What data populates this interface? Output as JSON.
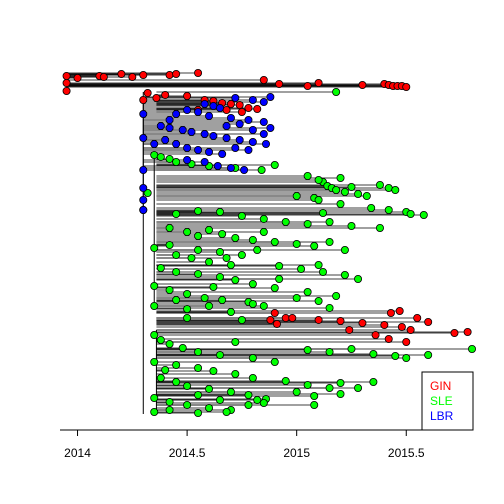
{
  "chart_data": {
    "type": "scatter",
    "subtype": "time-scaled phylogenetic tree",
    "title": "",
    "xlabel": "",
    "ylabel": "",
    "xlim": [
      2013.92,
      2015.8
    ],
    "x_ticks": [
      2014,
      2014.5,
      2015,
      2015.5
    ],
    "x_tick_labels": [
      "2014",
      "2014.5",
      "2015",
      "2015.5"
    ],
    "grid": false,
    "legend_position": "bottom-right",
    "series": [
      {
        "name": "GIN",
        "color": "#ff0000",
        "points": [
          [
            2013.95,
            76
          ],
          [
            2013.95,
            83
          ],
          [
            2013.95,
            91
          ],
          [
            2014.0,
            78
          ],
          [
            2014.1,
            76
          ],
          [
            2014.12,
            77
          ],
          [
            2014.2,
            74
          ],
          [
            2014.25,
            77
          ],
          [
            2014.3,
            75
          ],
          [
            2014.42,
            75
          ],
          [
            2014.45,
            74
          ],
          [
            2014.55,
            73
          ],
          [
            2014.85,
            80
          ],
          [
            2014.92,
            84
          ],
          [
            2015.05,
            86
          ],
          [
            2015.1,
            83
          ],
          [
            2015.3,
            85
          ],
          [
            2015.4,
            84
          ],
          [
            2015.42,
            85
          ],
          [
            2015.44,
            86
          ],
          [
            2015.46,
            86
          ],
          [
            2015.48,
            86
          ],
          [
            2015.5,
            87
          ],
          [
            2014.32,
            93
          ],
          [
            2014.4,
            95
          ],
          [
            2014.5,
            96
          ],
          [
            2014.58,
            100
          ],
          [
            2014.62,
            101
          ],
          [
            2014.66,
            103
          ],
          [
            2014.7,
            104
          ],
          [
            2014.74,
            105
          ],
          [
            2014.78,
            108
          ],
          [
            2014.82,
            109
          ],
          [
            2014.68,
            110
          ],
          [
            2014.75,
            112
          ],
          [
            2014.55,
            110
          ],
          [
            2014.9,
            313
          ],
          [
            2014.95,
            318
          ],
          [
            2015.1,
            320
          ],
          [
            2015.2,
            321
          ],
          [
            2015.3,
            323
          ],
          [
            2015.4,
            325
          ],
          [
            2015.48,
            327
          ],
          [
            2015.52,
            330
          ],
          [
            2015.55,
            318
          ],
          [
            2015.6,
            322
          ],
          [
            2015.72,
            333
          ],
          [
            2015.78,
            332
          ],
          [
            2015.36,
            335
          ],
          [
            2015.42,
            339
          ],
          [
            2015.5,
            342
          ],
          [
            2014.88,
            320
          ],
          [
            2014.98,
            318
          ],
          [
            2015.24,
            330
          ],
          [
            2014.36,
            98
          ],
          [
            2014.3,
            100
          ],
          [
            2015.47,
            311
          ],
          [
            2015.43,
            313
          ],
          [
            2014.91,
            324
          ]
        ]
      },
      {
        "name": "SLE",
        "color": "#00ff00",
        "points": [
          [
            2015.18,
            92
          ],
          [
            2014.35,
            155
          ],
          [
            2014.38,
            157
          ],
          [
            2014.42,
            159
          ],
          [
            2014.45,
            162
          ],
          [
            2014.52,
            164
          ],
          [
            2014.6,
            166
          ],
          [
            2014.72,
            168
          ],
          [
            2014.84,
            170
          ],
          [
            2014.9,
            165
          ],
          [
            2015.05,
            176
          ],
          [
            2015.12,
            182
          ],
          [
            2015.14,
            186
          ],
          [
            2015.16,
            188
          ],
          [
            2015.18,
            190
          ],
          [
            2015.22,
            192
          ],
          [
            2015.25,
            187
          ],
          [
            2015.28,
            194
          ],
          [
            2015.32,
            196
          ],
          [
            2015.38,
            185
          ],
          [
            2015.42,
            188
          ],
          [
            2015.45,
            190
          ],
          [
            2015.0,
            196
          ],
          [
            2015.08,
            198
          ],
          [
            2015.1,
            200
          ],
          [
            2015.2,
            204
          ],
          [
            2015.34,
            208
          ],
          [
            2015.42,
            210
          ],
          [
            2015.5,
            212
          ],
          [
            2015.52,
            214
          ],
          [
            2015.58,
            215
          ],
          [
            2015.12,
            213
          ],
          [
            2014.32,
            193
          ],
          [
            2014.3,
            210
          ],
          [
            2014.45,
            214
          ],
          [
            2014.55,
            211
          ],
          [
            2014.65,
            212
          ],
          [
            2014.75,
            216
          ],
          [
            2014.85,
            219
          ],
          [
            2014.95,
            222
          ],
          [
            2015.05,
            224
          ],
          [
            2015.15,
            222
          ],
          [
            2015.25,
            226
          ],
          [
            2014.42,
            228
          ],
          [
            2014.5,
            232
          ],
          [
            2014.55,
            236
          ],
          [
            2014.6,
            230
          ],
          [
            2014.66,
            234
          ],
          [
            2014.72,
            238
          ],
          [
            2014.8,
            240
          ],
          [
            2014.9,
            242
          ],
          [
            2015.0,
            244
          ],
          [
            2015.08,
            246
          ],
          [
            2015.15,
            242
          ],
          [
            2015.22,
            250
          ],
          [
            2014.35,
            248
          ],
          [
            2014.45,
            255
          ],
          [
            2014.52,
            258
          ],
          [
            2014.6,
            262
          ],
          [
            2014.68,
            258
          ],
          [
            2014.75,
            255
          ],
          [
            2014.82,
            250
          ],
          [
            2014.92,
            266
          ],
          [
            2015.02,
            269
          ],
          [
            2015.12,
            272
          ],
          [
            2015.22,
            275
          ],
          [
            2015.28,
            279
          ],
          [
            2014.38,
            268
          ],
          [
            2014.45,
            272
          ],
          [
            2014.55,
            274
          ],
          [
            2014.65,
            277
          ],
          [
            2014.72,
            280
          ],
          [
            2014.8,
            284
          ],
          [
            2014.9,
            288
          ],
          [
            2015.05,
            292
          ],
          [
            2015.18,
            296
          ],
          [
            2014.35,
            286
          ],
          [
            2014.42,
            290
          ],
          [
            2014.5,
            294
          ],
          [
            2014.58,
            298
          ],
          [
            2014.66,
            300
          ],
          [
            2014.78,
            302
          ],
          [
            2014.85,
            306
          ],
          [
            2014.35,
            306
          ],
          [
            2014.5,
            309
          ],
          [
            2014.6,
            306
          ],
          [
            2014.7,
            312
          ],
          [
            2014.8,
            304
          ],
          [
            2015.0,
            298
          ],
          [
            2015.1,
            301
          ],
          [
            2015.15,
            308
          ],
          [
            2014.35,
            335
          ],
          [
            2014.38,
            340
          ],
          [
            2014.42,
            344
          ],
          [
            2014.48,
            348
          ],
          [
            2014.55,
            352
          ],
          [
            2014.65,
            355
          ],
          [
            2014.72,
            342
          ],
          [
            2014.8,
            358
          ],
          [
            2014.9,
            362
          ],
          [
            2015.05,
            350
          ],
          [
            2015.15,
            352
          ],
          [
            2015.25,
            349
          ],
          [
            2015.35,
            354
          ],
          [
            2015.45,
            356
          ],
          [
            2015.5,
            358
          ],
          [
            2015.8,
            349
          ],
          [
            2014.35,
            362
          ],
          [
            2014.45,
            365
          ],
          [
            2014.55,
            368
          ],
          [
            2014.62,
            371
          ],
          [
            2014.72,
            374
          ],
          [
            2014.8,
            378
          ],
          [
            2014.95,
            381
          ],
          [
            2015.05,
            385
          ],
          [
            2015.15,
            388
          ],
          [
            2015.2,
            383
          ],
          [
            2014.38,
            378
          ],
          [
            2014.45,
            382
          ],
          [
            2014.5,
            386
          ],
          [
            2014.6,
            389
          ],
          [
            2014.7,
            392
          ],
          [
            2014.78,
            395
          ],
          [
            2014.86,
            399
          ],
          [
            2015.0,
            392
          ],
          [
            2015.08,
            396
          ],
          [
            2014.35,
            398
          ],
          [
            2014.42,
            402
          ],
          [
            2014.5,
            405
          ],
          [
            2014.6,
            408
          ],
          [
            2014.7,
            410
          ],
          [
            2014.78,
            405
          ],
          [
            2014.85,
            403
          ],
          [
            2015.08,
            405
          ],
          [
            2014.35,
            412
          ],
          [
            2014.42,
            410
          ],
          [
            2014.55,
            413
          ],
          [
            2014.68,
            412
          ],
          [
            2014.82,
            400
          ],
          [
            2015.2,
            394
          ],
          [
            2015.28,
            388
          ],
          [
            2015.35,
            382
          ],
          [
            2015.1,
            180
          ],
          [
            2015.2,
            178
          ],
          [
            2014.42,
            245
          ],
          [
            2014.55,
            250
          ],
          [
            2014.65,
            252
          ],
          [
            2015.38,
            228
          ],
          [
            2014.5,
            318
          ],
          [
            2014.75,
            320
          ],
          [
            2014.92,
            279
          ],
          [
            2014.85,
            232
          ],
          [
            2014.62,
            287
          ],
          [
            2015.1,
            265
          ],
          [
            2014.7,
            265
          ],
          [
            2014.4,
            370
          ],
          [
            2014.45,
            300
          ],
          [
            2015.6,
            355
          ],
          [
            2014.55,
            395
          ],
          [
            2014.65,
            400
          ]
        ]
      },
      {
        "name": "LBR",
        "color": "#0000ff",
        "points": [
          [
            2014.72,
            98
          ],
          [
            2014.8,
            100
          ],
          [
            2014.85,
            102
          ],
          [
            2014.88,
            97
          ],
          [
            2014.58,
            104
          ],
          [
            2014.62,
            106
          ],
          [
            2014.65,
            108
          ],
          [
            2014.5,
            110
          ],
          [
            2014.55,
            112
          ],
          [
            2014.45,
            114
          ],
          [
            2014.6,
            116
          ],
          [
            2014.7,
            118
          ],
          [
            2014.78,
            120
          ],
          [
            2014.85,
            122
          ],
          [
            2014.3,
            114
          ],
          [
            2014.38,
            126
          ],
          [
            2014.42,
            128
          ],
          [
            2014.48,
            130
          ],
          [
            2014.52,
            132
          ],
          [
            2014.58,
            134
          ],
          [
            2014.62,
            136
          ],
          [
            2014.68,
            138
          ],
          [
            2014.74,
            140
          ],
          [
            2014.8,
            142
          ],
          [
            2014.86,
            144
          ],
          [
            2014.4,
            140
          ],
          [
            2014.45,
            144
          ],
          [
            2014.5,
            148
          ],
          [
            2014.55,
            150
          ],
          [
            2014.6,
            152
          ],
          [
            2014.66,
            154
          ],
          [
            2014.72,
            148
          ],
          [
            2014.78,
            150
          ],
          [
            2014.85,
            134
          ],
          [
            2014.3,
            138
          ],
          [
            2014.35,
            144
          ],
          [
            2014.5,
            160
          ],
          [
            2014.58,
            162
          ],
          [
            2014.64,
            166
          ],
          [
            2014.7,
            168
          ],
          [
            2014.76,
            170
          ],
          [
            2014.3,
            170
          ],
          [
            2014.3,
            188
          ],
          [
            2014.3,
            200
          ],
          [
            2014.3,
            210
          ],
          [
            2014.68,
            126
          ],
          [
            2014.74,
            124
          ],
          [
            2014.42,
            120
          ],
          [
            2014.8,
            130
          ],
          [
            2014.88,
            128
          ]
        ]
      }
    ]
  }
}
